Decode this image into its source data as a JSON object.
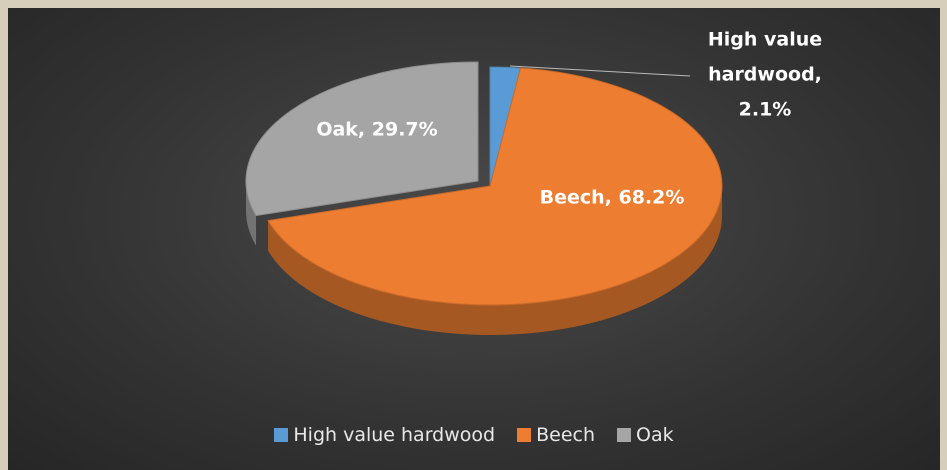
{
  "chart_data": {
    "type": "pie",
    "categories": [
      "High value hardwood",
      "Beech",
      "Oak"
    ],
    "values": [
      2.1,
      68.2,
      29.7
    ],
    "value_labels": [
      "High value hardwood, 2.1%",
      "Beech, 68.2%",
      "Oak, 29.7%"
    ],
    "colors": [
      "#5b9bd5",
      "#ed7d31",
      "#a5a5a5"
    ],
    "legend": "bottom"
  }
}
